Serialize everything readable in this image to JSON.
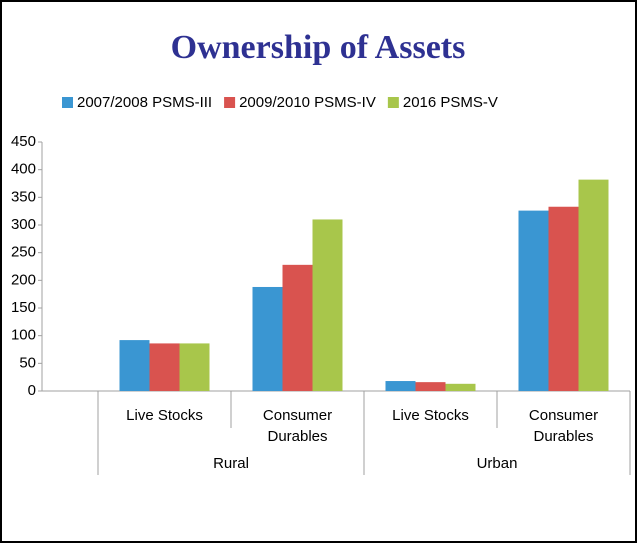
{
  "chart_data": {
    "type": "bar",
    "title": "Ownership of Assets",
    "categories": [
      "Live Stocks",
      "Consumer Durables",
      "Live Stocks",
      "Consumer Durables"
    ],
    "category_groups": [
      "Rural",
      "Urban"
    ],
    "series": [
      {
        "name": "2007/2008 PSMS-III",
        "color": "#3a96d2",
        "values": [
          92,
          188,
          18,
          326
        ]
      },
      {
        "name": "2009/2010 PSMS-IV",
        "color": "#d9534f",
        "values": [
          86,
          228,
          16,
          333
        ]
      },
      {
        "name": "2016 PSMS-V",
        "color": "#a8c64b",
        "values": [
          86,
          310,
          13,
          382
        ]
      }
    ],
    "ylim": [
      0,
      450
    ],
    "yticks": [
      0,
      50,
      100,
      150,
      200,
      250,
      300,
      350,
      400,
      450
    ],
    "grid": false,
    "legend": "top"
  }
}
